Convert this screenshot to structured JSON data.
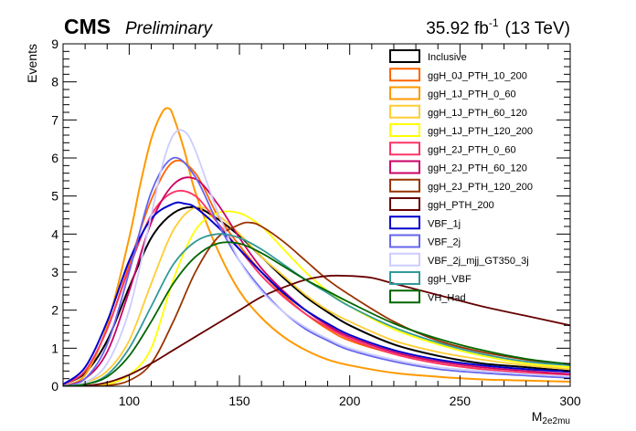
{
  "header": {
    "experiment": "CMS",
    "status": "Preliminary",
    "luminosity": "35.92 fb",
    "luminosity_exponent": "-1",
    "energy": "(13 TeV)"
  },
  "chart_data": {
    "type": "line",
    "xlabel": "M",
    "xlabel_subscript": "2e2mu",
    "ylabel": "Events",
    "xlim": [
      70,
      300
    ],
    "ylim": [
      0,
      9
    ],
    "x_ticks": [
      100,
      150,
      200,
      250,
      300
    ],
    "x_minor_step": 10,
    "y_ticks": [
      0,
      1,
      2,
      3,
      4,
      5,
      6,
      7,
      8,
      9
    ],
    "y_minor_step": 0.2,
    "grid": false,
    "legend_position": "top-right",
    "series": [
      {
        "name": "Inclusive",
        "color": "#000000",
        "width": 2.0,
        "x": [
          70,
          80,
          90,
          100,
          110,
          120,
          130,
          140,
          150,
          160,
          170,
          180,
          190,
          200,
          220,
          240,
          260,
          280,
          300
        ],
        "y": [
          0.05,
          0.35,
          1.2,
          2.6,
          3.9,
          4.55,
          4.7,
          4.4,
          3.95,
          3.4,
          2.85,
          2.35,
          1.95,
          1.6,
          1.1,
          0.8,
          0.6,
          0.5,
          0.4
        ]
      },
      {
        "name": "ggH_0J_PTH_10_200",
        "color": "#ff6600",
        "width": 1.8,
        "x": [
          70,
          80,
          90,
          100,
          110,
          120,
          130,
          140,
          150,
          160,
          170,
          180,
          190,
          200,
          220,
          240,
          260,
          280,
          300
        ],
        "y": [
          0.05,
          0.4,
          1.5,
          3.2,
          4.9,
          5.9,
          5.6,
          4.5,
          3.7,
          3.0,
          2.4,
          1.9,
          1.5,
          1.2,
          0.85,
          0.6,
          0.45,
          0.35,
          0.3
        ]
      },
      {
        "name": "ggH_1J_PTH_0_60",
        "color": "#ff9900",
        "width": 2.0,
        "x": [
          70,
          80,
          90,
          100,
          105,
          110,
          115,
          118,
          120,
          125,
          130,
          140,
          150,
          160,
          170,
          180,
          190,
          200,
          220,
          240,
          260,
          280,
          300
        ],
        "y": [
          0.0,
          0.3,
          1.6,
          3.9,
          5.3,
          6.5,
          7.2,
          7.3,
          7.1,
          6.2,
          5.1,
          3.6,
          2.5,
          1.8,
          1.3,
          0.95,
          0.7,
          0.55,
          0.35,
          0.25,
          0.18,
          0.15,
          0.12
        ]
      },
      {
        "name": "ggH_1J_PTH_60_120",
        "color": "#ffcc33",
        "width": 1.8,
        "x": [
          70,
          80,
          90,
          100,
          110,
          120,
          130,
          140,
          150,
          160,
          170,
          180,
          190,
          200,
          220,
          240,
          260,
          280,
          300
        ],
        "y": [
          0.0,
          0.1,
          0.4,
          1.2,
          2.7,
          4.1,
          4.7,
          4.5,
          4.0,
          3.4,
          2.9,
          2.4,
          2.0,
          1.7,
          1.2,
          0.9,
          0.7,
          0.55,
          0.45
        ]
      },
      {
        "name": "ggH_1J_PTH_120_200",
        "color": "#ffff00",
        "width": 1.8,
        "x": [
          70,
          80,
          90,
          100,
          110,
          120,
          130,
          140,
          150,
          160,
          170,
          180,
          190,
          200,
          220,
          240,
          260,
          280,
          300
        ],
        "y": [
          0.0,
          0.0,
          0.05,
          0.3,
          1.0,
          2.8,
          4.1,
          4.55,
          4.55,
          4.2,
          3.6,
          3.0,
          2.5,
          2.1,
          1.5,
          1.1,
          0.8,
          0.6,
          0.5
        ]
      },
      {
        "name": "ggH_2J_PTH_0_60",
        "color": "#ff3366",
        "width": 1.8,
        "x": [
          70,
          80,
          90,
          100,
          110,
          120,
          130,
          140,
          150,
          160,
          170,
          180,
          190,
          200,
          220,
          240,
          260,
          280,
          300
        ],
        "y": [
          0.05,
          0.4,
          1.5,
          3.1,
          4.5,
          5.1,
          5.0,
          4.3,
          3.6,
          2.9,
          2.35,
          1.9,
          1.55,
          1.25,
          0.85,
          0.6,
          0.45,
          0.35,
          0.28
        ]
      },
      {
        "name": "ggH_2J_PTH_60_120",
        "color": "#cc0066",
        "width": 1.8,
        "x": [
          70,
          80,
          90,
          100,
          110,
          120,
          130,
          140,
          150,
          160,
          170,
          180,
          190,
          200,
          220,
          240,
          260,
          280,
          300
        ],
        "y": [
          0.0,
          0.2,
          0.9,
          2.5,
          4.3,
          5.3,
          5.45,
          4.8,
          3.9,
          3.1,
          2.5,
          2.0,
          1.6,
          1.3,
          0.9,
          0.65,
          0.5,
          0.4,
          0.32
        ]
      },
      {
        "name": "ggH_2J_PTH_120_200",
        "color": "#993300",
        "width": 1.8,
        "x": [
          70,
          80,
          90,
          100,
          110,
          120,
          130,
          140,
          150,
          155,
          160,
          170,
          180,
          190,
          200,
          220,
          240,
          260,
          280,
          300
        ],
        "y": [
          0.0,
          0.0,
          0.02,
          0.15,
          0.6,
          1.7,
          3.0,
          3.9,
          4.25,
          4.3,
          4.2,
          3.8,
          3.3,
          2.8,
          2.4,
          1.7,
          1.2,
          0.9,
          0.7,
          0.55
        ]
      },
      {
        "name": "ggH_PTH_200",
        "color": "#660000",
        "width": 1.8,
        "x": [
          70,
          80,
          90,
          100,
          110,
          120,
          130,
          140,
          150,
          160,
          170,
          180,
          190,
          200,
          210,
          220,
          240,
          260,
          280,
          300
        ],
        "y": [
          0.0,
          0.01,
          0.1,
          0.3,
          0.6,
          0.95,
          1.3,
          1.65,
          2.0,
          2.35,
          2.6,
          2.8,
          2.9,
          2.9,
          2.85,
          2.7,
          2.4,
          2.1,
          1.85,
          1.6
        ]
      },
      {
        "name": "VBF_1j",
        "color": "#0000cc",
        "width": 2.0,
        "x": [
          70,
          80,
          90,
          100,
          110,
          120,
          125,
          130,
          140,
          150,
          160,
          170,
          180,
          190,
          200,
          220,
          240,
          260,
          280,
          300
        ],
        "y": [
          0.05,
          0.5,
          1.7,
          3.3,
          4.4,
          4.8,
          4.8,
          4.7,
          4.2,
          3.6,
          3.0,
          2.45,
          2.0,
          1.65,
          1.35,
          0.95,
          0.7,
          0.55,
          0.45,
          0.38
        ]
      },
      {
        "name": "VBF_2j",
        "color": "#6666ee",
        "width": 1.8,
        "x": [
          70,
          80,
          90,
          100,
          110,
          120,
          130,
          140,
          150,
          160,
          170,
          180,
          190,
          200,
          220,
          240,
          260,
          280,
          300
        ],
        "y": [
          0.0,
          0.2,
          1.1,
          3.0,
          5.1,
          6.0,
          5.5,
          4.3,
          3.3,
          2.55,
          1.95,
          1.5,
          1.2,
          0.95,
          0.65,
          0.45,
          0.35,
          0.28,
          0.22
        ]
      },
      {
        "name": "VBF_2j_mjj_GT350_3j",
        "color": "#ccccff",
        "width": 1.8,
        "x": [
          70,
          80,
          90,
          100,
          110,
          115,
          120,
          125,
          130,
          140,
          150,
          160,
          170,
          180,
          190,
          200,
          220,
          240,
          260,
          280,
          300
        ],
        "y": [
          0.0,
          0.1,
          0.6,
          2.0,
          4.5,
          5.8,
          6.6,
          6.7,
          6.2,
          4.6,
          3.3,
          2.5,
          1.95,
          1.55,
          1.25,
          1.0,
          0.7,
          0.5,
          0.4,
          0.32,
          0.26
        ]
      },
      {
        "name": "ggH_VBF",
        "color": "#339999",
        "width": 1.8,
        "x": [
          70,
          80,
          90,
          100,
          110,
          120,
          130,
          140,
          150,
          160,
          170,
          180,
          190,
          200,
          220,
          240,
          260,
          280,
          300
        ],
        "y": [
          0.0,
          0.05,
          0.3,
          1.0,
          2.1,
          3.2,
          3.8,
          4.0,
          3.9,
          3.6,
          3.2,
          2.8,
          2.45,
          2.1,
          1.55,
          1.15,
          0.85,
          0.65,
          0.55
        ]
      },
      {
        "name": "VH_Had",
        "color": "#006600",
        "width": 1.8,
        "x": [
          70,
          80,
          90,
          100,
          110,
          120,
          130,
          140,
          150,
          160,
          170,
          180,
          190,
          200,
          220,
          240,
          260,
          280,
          300
        ],
        "y": [
          0.0,
          0.05,
          0.25,
          0.8,
          1.7,
          2.7,
          3.4,
          3.75,
          3.75,
          3.5,
          3.15,
          2.8,
          2.5,
          2.2,
          1.65,
          1.25,
          0.95,
          0.72,
          0.58
        ]
      }
    ]
  }
}
